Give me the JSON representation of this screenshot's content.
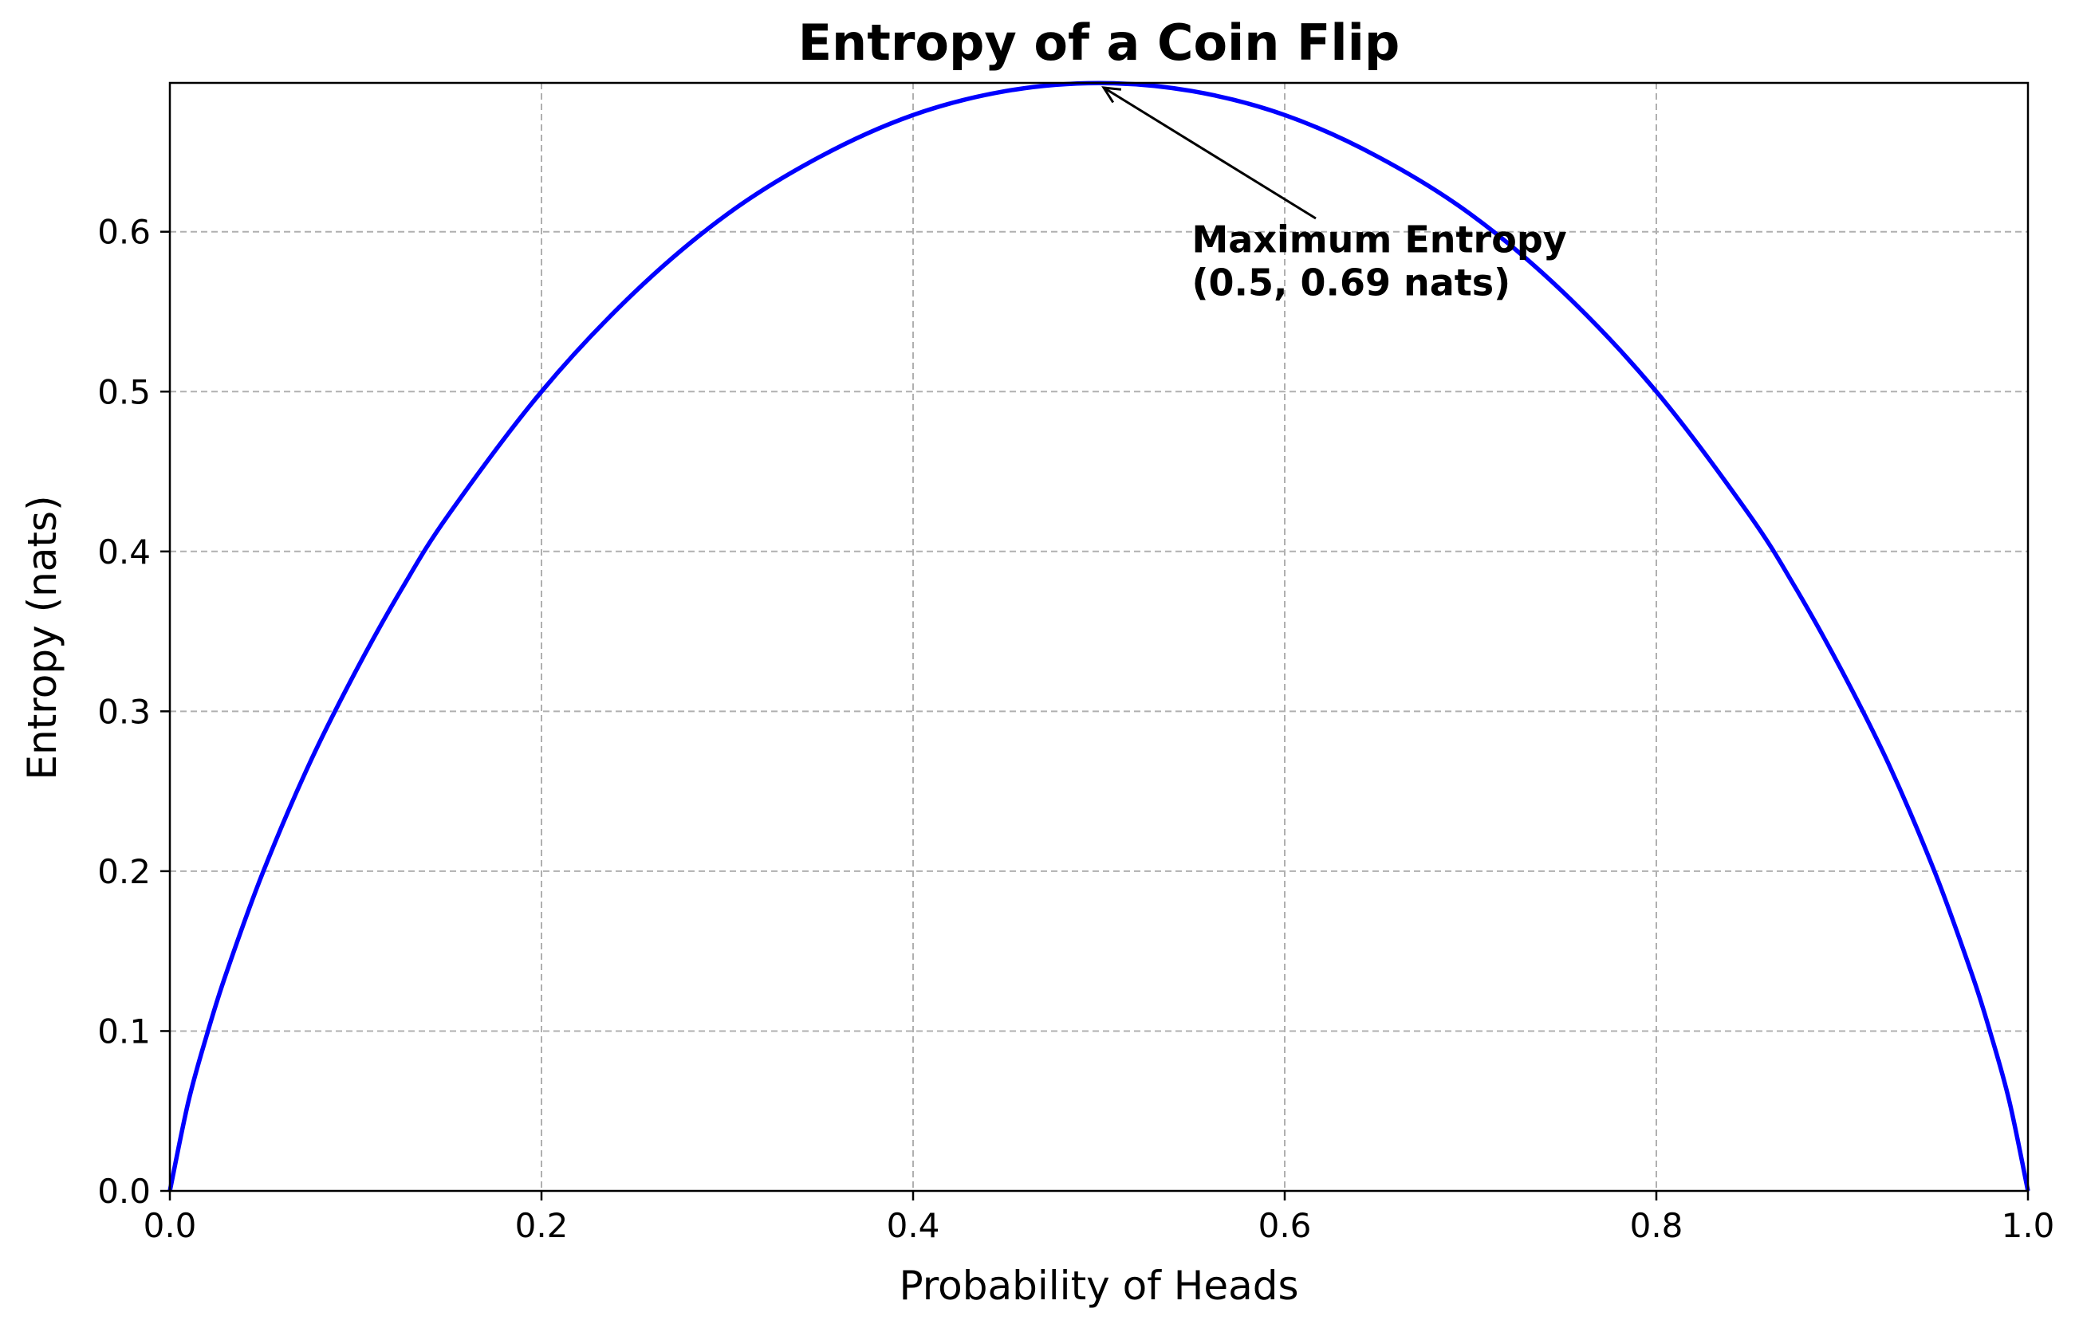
{
  "chart_data": {
    "type": "line",
    "title": "Entropy of a Coin Flip",
    "xlabel": "Probability of Heads",
    "ylabel": "Entropy (nats)",
    "xlim": [
      0.0,
      1.0
    ],
    "ylim": [
      0.0,
      0.6931
    ],
    "x_ticks": [
      "0.0",
      "0.2",
      "0.4",
      "0.6",
      "0.8",
      "1.0"
    ],
    "y_ticks": [
      "0.0",
      "0.1",
      "0.2",
      "0.3",
      "0.4",
      "0.5",
      "0.6"
    ],
    "grid": true,
    "series": [
      {
        "color": "#0000ff",
        "x": [
          0.0,
          0.01,
          0.02,
          0.03,
          0.05,
          0.075,
          0.1,
          0.125,
          0.15,
          0.2,
          0.25,
          0.3,
          0.35,
          0.4,
          0.45,
          0.5,
          0.55,
          0.6,
          0.65,
          0.7,
          0.75,
          0.8,
          0.85,
          0.875,
          0.9,
          0.925,
          0.95,
          0.97,
          0.98,
          0.99,
          1.0
        ],
        "y": [
          0.0,
          0.056,
          0.098,
          0.135,
          0.199,
          0.267,
          0.325,
          0.377,
          0.423,
          0.5,
          0.562,
          0.611,
          0.647,
          0.673,
          0.688,
          0.693,
          0.688,
          0.673,
          0.647,
          0.611,
          0.562,
          0.5,
          0.423,
          0.377,
          0.325,
          0.267,
          0.199,
          0.135,
          0.098,
          0.056,
          0.0
        ]
      }
    ],
    "annotation": {
      "line1": "Maximum Entropy",
      "line2": "(0.5, 0.69 nats)",
      "point": [
        0.5,
        0.6931
      ],
      "text_anchor": [
        0.55,
        0.6
      ]
    }
  }
}
